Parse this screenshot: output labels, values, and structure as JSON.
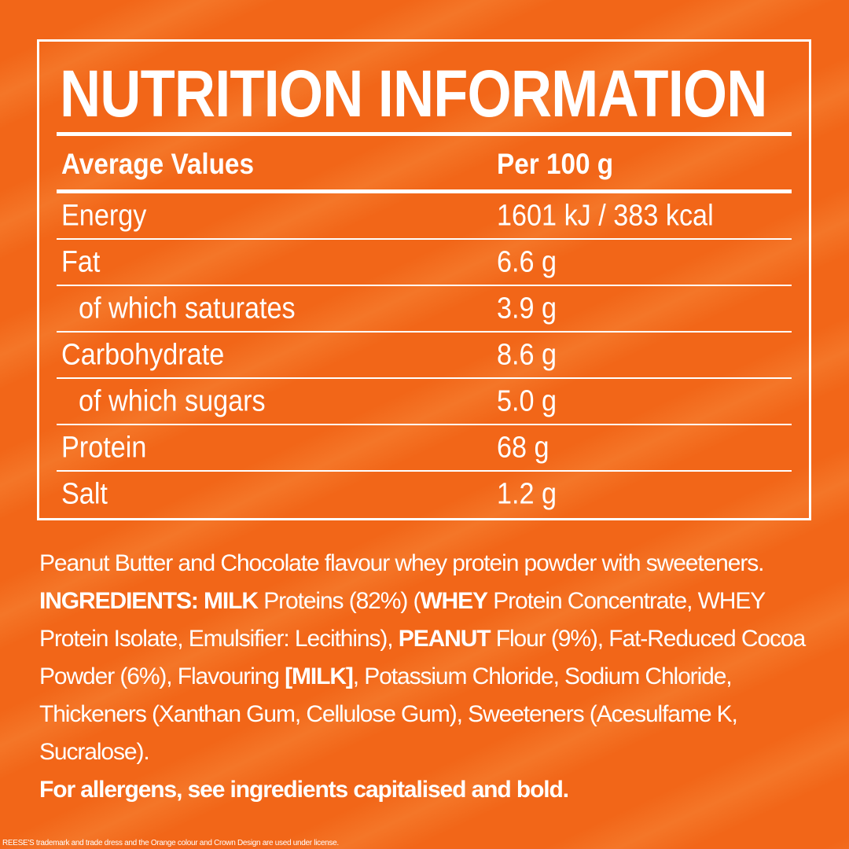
{
  "title": "NUTRITION INFORMATION",
  "table": {
    "header": [
      "Average Values",
      "Per 100 g"
    ],
    "rows": [
      {
        "nutrient": "Energy",
        "amount": "1601 kJ / 383 kcal",
        "indent": false
      },
      {
        "nutrient": "Fat",
        "amount": "6.6 g",
        "indent": false
      },
      {
        "nutrient": "of which saturates",
        "amount": "3.9 g",
        "indent": true
      },
      {
        "nutrient": "Carbohydrate",
        "amount": "8.6 g",
        "indent": false
      },
      {
        "nutrient": "of which sugars",
        "amount": "5.0 g",
        "indent": true
      },
      {
        "nutrient": "Protein",
        "amount": "68 g",
        "indent": false
      },
      {
        "nutrient": "Salt",
        "amount": "1.2 g",
        "indent": false
      }
    ]
  },
  "description": "Peanut Butter and Chocolate flavour whey protein powder with sweeteners.",
  "ingredients": [
    {
      "text": "INGREDIENTS: MILK",
      "bold": true
    },
    {
      "text": " Proteins (82%) (",
      "bold": false
    },
    {
      "text": "WHEY",
      "bold": true
    },
    {
      "text": " Protein Concentrate, WHEY Protein Isolate, Emulsifier: Lecithins), ",
      "bold": false
    },
    {
      "text": "PEANUT",
      "bold": true
    },
    {
      "text": " Flour (9%), Fat-Reduced Cocoa Powder (6%), Flavouring ",
      "bold": false
    },
    {
      "text": "[MILK]",
      "bold": true
    },
    {
      "text": ", Potassium Chloride, Sodium Chloride, Thickeners (Xanthan Gum, Cellulose Gum), Sweeteners (Acesulfame K, Sucralose).",
      "bold": false
    }
  ],
  "allergen_note": "For allergens, see ingredients capitalised and bold.",
  "footer": "REESE'S trademark and trade dress and the Orange colour and Crown Design are used under license."
}
